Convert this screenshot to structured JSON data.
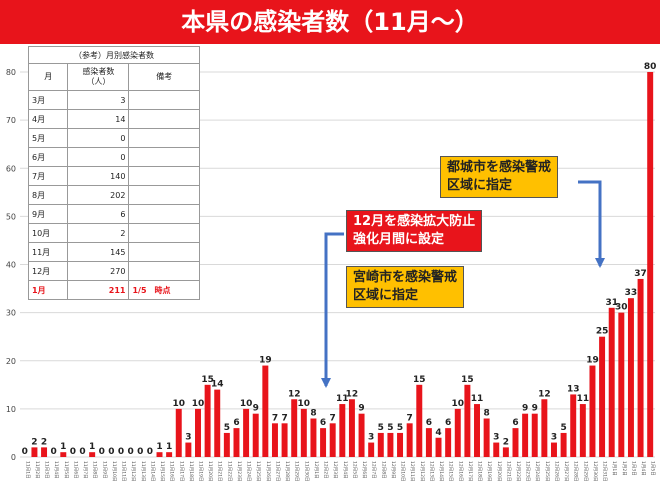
{
  "title": "本県の感染者数（11月～）",
  "colors": {
    "title_bg": "#e8141b",
    "bar": "#e8141b",
    "label_bg": "#ffc000",
    "arrow": "#4472c4"
  },
  "table": {
    "caption": "（参考）月別感染者数",
    "headers": [
      "月",
      "感染者数\n（人）",
      "備考"
    ],
    "rows": [
      {
        "month": "3月",
        "count": "3",
        "note": ""
      },
      {
        "month": "4月",
        "count": "14",
        "note": ""
      },
      {
        "month": "5月",
        "count": "0",
        "note": ""
      },
      {
        "month": "6月",
        "count": "0",
        "note": ""
      },
      {
        "month": "7月",
        "count": "140",
        "note": ""
      },
      {
        "month": "8月",
        "count": "202",
        "note": ""
      },
      {
        "month": "9月",
        "count": "6",
        "note": ""
      },
      {
        "month": "10月",
        "count": "2",
        "note": ""
      },
      {
        "month": "11月",
        "count": "145",
        "note": ""
      },
      {
        "month": "12月",
        "count": "270",
        "note": ""
      },
      {
        "month": "1月",
        "count": "211",
        "note": "1/5　時点"
      }
    ]
  },
  "callouts": {
    "red1": "12月を感染拡大防止\n強化月間に設定",
    "yellow1": "宮崎市を感染警戒\n区域に指定",
    "yellow2": "都城市を感染警戒\n区域に指定"
  },
  "chart_data": {
    "type": "bar",
    "ylim": [
      0,
      80
    ],
    "yticks": [
      0,
      10,
      20,
      30,
      40,
      50,
      60,
      70,
      80
    ],
    "grid": true,
    "categories": [
      "11月1日",
      "11月2日",
      "11月3日",
      "11月4日",
      "11月5日",
      "11月6日",
      "11月7日",
      "11月8日",
      "11月9日",
      "11月10日",
      "11月11日",
      "11月12日",
      "11月13日",
      "11月14日",
      "11月15日",
      "11月16日",
      "11月17日",
      "11月18日",
      "11月19日",
      "11月20日",
      "11月21日",
      "11月22日",
      "11月23日",
      "11月24日",
      "11月25日",
      "11月26日",
      "11月27日",
      "11月28日",
      "11月29日",
      "11月30日",
      "12月1日",
      "12月2日",
      "12月3日",
      "12月4日",
      "12月5日",
      "12月6日",
      "12月7日",
      "12月8日",
      "12月9日",
      "12月10日",
      "12月11日",
      "12月12日",
      "12月13日",
      "12月14日",
      "12月15日",
      "12月16日",
      "12月17日",
      "12月18日",
      "12月19日",
      "12月20日",
      "12月21日",
      "12月22日",
      "12月23日",
      "12月24日",
      "12月25日",
      "12月26日",
      "12月27日",
      "12月28日",
      "12月29日",
      "12月30日",
      "12月31日",
      "1月1日",
      "1月2日",
      "1月3日",
      "1月4日",
      "1月5日"
    ],
    "values": [
      0,
      2,
      2,
      0,
      1,
      0,
      0,
      1,
      0,
      0,
      0,
      0,
      0,
      0,
      1,
      1,
      10,
      3,
      10,
      15,
      14,
      5,
      6,
      10,
      9,
      19,
      7,
      7,
      12,
      10,
      8,
      6,
      7,
      11,
      12,
      9,
      3,
      5,
      5,
      5,
      7,
      15,
      6,
      4,
      6,
      10,
      15,
      11,
      8,
      3,
      2,
      6,
      9,
      9,
      12,
      3,
      5,
      13,
      11,
      19,
      25,
      31,
      30,
      33,
      37,
      80
    ]
  }
}
